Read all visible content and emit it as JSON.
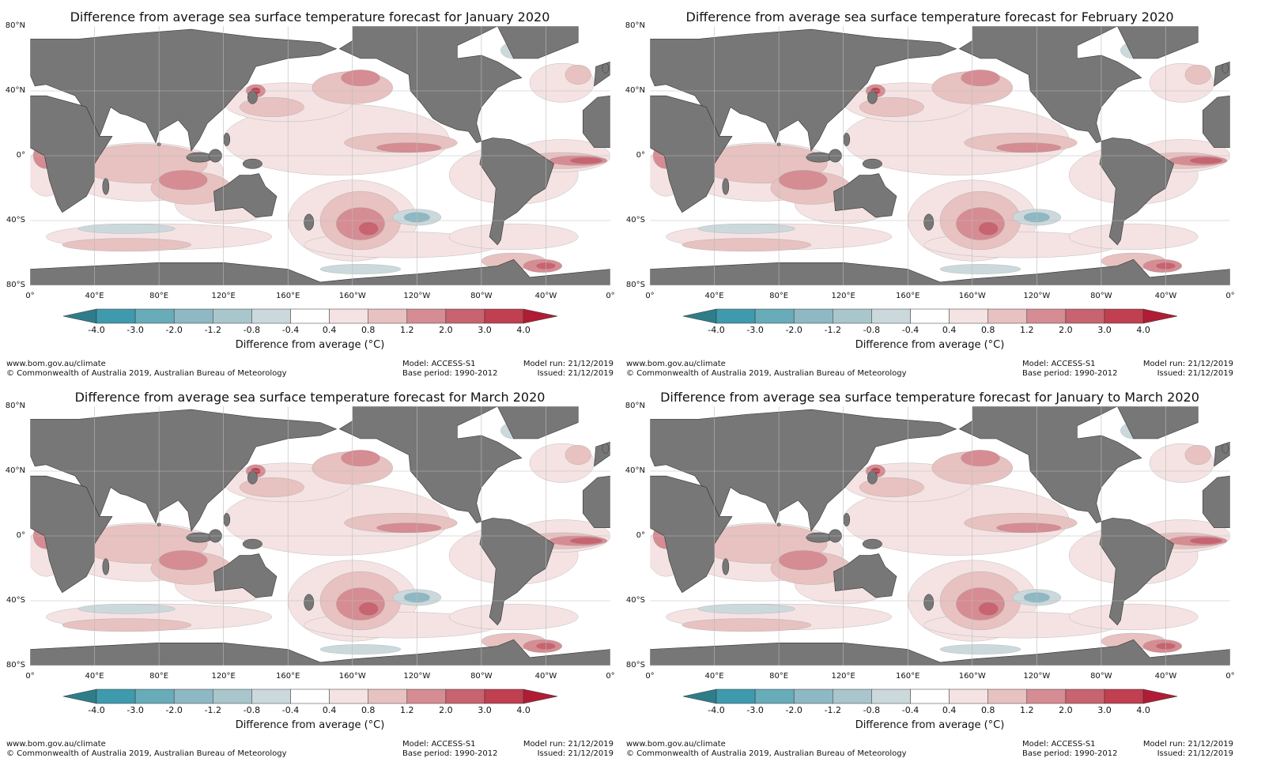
{
  "panels": [
    {
      "title": "Difference from average sea surface temperature forecast for January 2020"
    },
    {
      "title": "Difference from average sea surface temperature forecast for February 2020"
    },
    {
      "title": "Difference from average sea surface temperature forecast for March 2020"
    },
    {
      "title": "Difference from average sea surface temperature forecast for January to March 2020"
    }
  ],
  "chart_data": {
    "type": "heatmap",
    "lat_ticks": [
      "80°N",
      "40°N",
      "0°",
      "40°S",
      "80°S"
    ],
    "lon_ticks": [
      "0°",
      "40°E",
      "80°E",
      "120°E",
      "160°E",
      "160°W",
      "120°W",
      "80°W",
      "40°W",
      "0°"
    ],
    "colorbar": {
      "label": "Difference from average (°C)",
      "ticks": [
        "-4.0",
        "-3.0",
        "-2.0",
        "-1.2",
        "-0.8",
        "-0.4",
        "0.4",
        "0.8",
        "1.2",
        "2.0",
        "3.0",
        "4.0"
      ],
      "colors": [
        "#3f9aad",
        "#68abb9",
        "#8db8c4",
        "#a8c6cc",
        "#ccd9dc",
        "#ffffff",
        "#f5e3e3",
        "#e7c2c1",
        "#d68c93",
        "#c86370",
        "#c03f50"
      ],
      "under_color": "#2f7d8a",
      "over_color": "#b01c35"
    },
    "land_color": "#777777"
  },
  "footer": {
    "url": "www.bom.gov.au/climate",
    "copyright": "© Commonwealth of Australia 2019, Australian Bureau of Meteorology",
    "model": "Model: ACCESS-S1",
    "base_period": "Base period: 1990-2012",
    "model_run": "Model run: 21/12/2019",
    "issued": "Issued: 21/12/2019"
  }
}
